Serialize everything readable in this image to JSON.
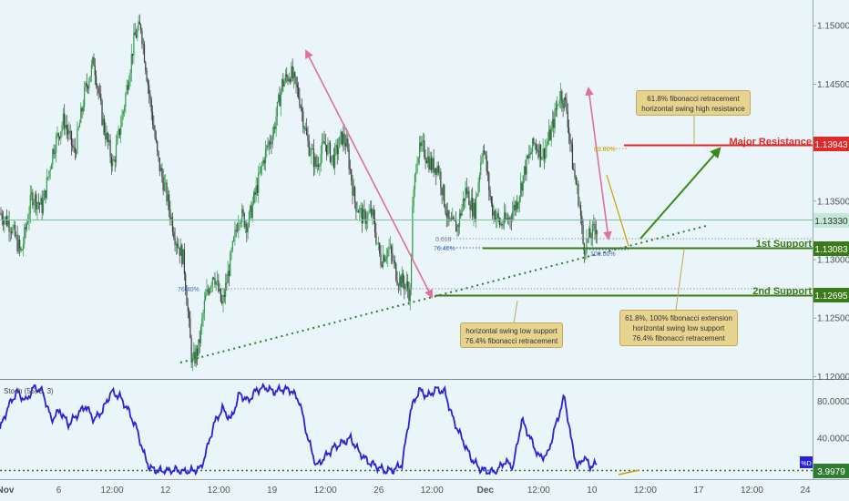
{
  "chart_data": [
    {
      "type": "candlestick",
      "title": "",
      "y_ticks": [
        "1.15000",
        "1.14500",
        "1.14000",
        "1.13500",
        "1.13000",
        "1.12500",
        "1.12000"
      ],
      "y_tick_values": [
        1.15,
        1.145,
        1.14,
        1.135,
        1.13,
        1.125,
        1.12
      ],
      "ylim": [
        1.1198,
        1.1522
      ],
      "x_ticks": [
        "Nov",
        "6",
        "12:00",
        "12",
        "12:00",
        "19",
        "12:00",
        "26",
        "12:00",
        "Dec",
        "12:00",
        "10",
        "12:00",
        "17",
        "12:00",
        "24"
      ],
      "x_tick_bold": [
        "Nov",
        "Dec"
      ],
      "price_path": [
        [
          0,
          1.134
        ],
        [
          5,
          1.133
        ],
        [
          10,
          1.1305
        ],
        [
          15,
          1.1355
        ],
        [
          20,
          1.1345
        ],
        [
          25,
          1.1395
        ],
        [
          30,
          1.142
        ],
        [
          35,
          1.139
        ],
        [
          40,
          1.1445
        ],
        [
          44,
          1.147
        ],
        [
          48,
          1.142
        ],
        [
          53,
          1.138
        ],
        [
          58,
          1.143
        ],
        [
          63,
          1.149
        ],
        [
          66,
          1.15
        ],
        [
          70,
          1.144
        ],
        [
          74,
          1.1385
        ],
        [
          78,
          1.1355
        ],
        [
          82,
          1.132
        ],
        [
          86,
          1.13
        ],
        [
          90,
          1.121
        ],
        [
          93,
          1.1225
        ],
        [
          96,
          1.1265
        ],
        [
          100,
          1.129
        ],
        [
          104,
          1.126
        ],
        [
          108,
          1.13
        ],
        [
          112,
          1.134
        ],
        [
          116,
          1.133
        ],
        [
          120,
          1.136
        ],
        [
          124,
          1.139
        ],
        [
          128,
          1.141
        ],
        [
          132,
          1.145
        ],
        [
          136,
          1.146
        ],
        [
          140,
          1.144
        ],
        [
          144,
          1.14
        ],
        [
          148,
          1.138
        ],
        [
          152,
          1.14
        ],
        [
          156,
          1.1385
        ],
        [
          160,
          1.1405
        ],
        [
          162,
          1.14
        ],
        [
          166,
          1.135
        ],
        [
          170,
          1.1335
        ],
        [
          174,
          1.134
        ],
        [
          178,
          1.13
        ],
        [
          182,
          1.131
        ],
        [
          186,
          1.1285
        ],
        [
          190,
          1.1278
        ],
        [
          192,
          1.127
        ],
        [
          193,
          1.134
        ],
        [
          195,
          1.139
        ],
        [
          198,
          1.1395
        ],
        [
          202,
          1.138
        ],
        [
          205,
          1.138
        ],
        [
          210,
          1.133
        ],
        [
          214,
          1.1328
        ],
        [
          218,
          1.136
        ],
        [
          222,
          1.134
        ],
        [
          226,
          1.14
        ],
        [
          230,
          1.1345
        ],
        [
          234,
          1.133
        ],
        [
          238,
          1.1335
        ],
        [
          242,
          1.135
        ],
        [
          246,
          1.138
        ],
        [
          250,
          1.14
        ],
        [
          254,
          1.139
        ],
        [
          258,
          1.141
        ],
        [
          262,
          1.1443
        ],
        [
          265,
          1.143
        ],
        [
          268,
          1.138
        ],
        [
          271,
          1.135
        ],
        [
          273,
          1.131
        ],
        [
          276,
          1.132
        ],
        [
          279,
          1.1328
        ]
      ],
      "x_range": [
        0,
        380
      ],
      "last_price_label": "1.13330",
      "last_price": 1.1333
    },
    {
      "type": "line",
      "indicator": "Stoch (55, 5, 3)",
      "series": [
        {
          "name": "%D"
        }
      ],
      "y_ticks": [
        "80.0000",
        "40.0000"
      ],
      "y_tick_values": [
        80,
        40
      ],
      "ylim": [
        0,
        100
      ],
      "oversold_level": 3.9979,
      "last_value_label": "3.9979",
      "values_path": [
        [
          0,
          50
        ],
        [
          4,
          75
        ],
        [
          8,
          90
        ],
        [
          12,
          80
        ],
        [
          16,
          95
        ],
        [
          20,
          90
        ],
        [
          24,
          60
        ],
        [
          28,
          70
        ],
        [
          32,
          55
        ],
        [
          36,
          65
        ],
        [
          40,
          75
        ],
        [
          44,
          60
        ],
        [
          48,
          70
        ],
        [
          52,
          90
        ],
        [
          56,
          85
        ],
        [
          60,
          70
        ],
        [
          64,
          50
        ],
        [
          67,
          25
        ],
        [
          70,
          8
        ],
        [
          74,
          5
        ],
        [
          78,
          5
        ],
        [
          82,
          6
        ],
        [
          86,
          4
        ],
        [
          90,
          5
        ],
        [
          94,
          8
        ],
        [
          97,
          30
        ],
        [
          100,
          55
        ],
        [
          104,
          72
        ],
        [
          108,
          60
        ],
        [
          112,
          88
        ],
        [
          116,
          80
        ],
        [
          120,
          92
        ],
        [
          124,
          95
        ],
        [
          128,
          90
        ],
        [
          132,
          93
        ],
        [
          136,
          92
        ],
        [
          140,
          80
        ],
        [
          144,
          40
        ],
        [
          148,
          10
        ],
        [
          152,
          20
        ],
        [
          156,
          30
        ],
        [
          160,
          35
        ],
        [
          164,
          40
        ],
        [
          168,
          25
        ],
        [
          172,
          15
        ],
        [
          176,
          10
        ],
        [
          180,
          5
        ],
        [
          184,
          6
        ],
        [
          188,
          12
        ],
        [
          192,
          70
        ],
        [
          196,
          92
        ],
        [
          200,
          85
        ],
        [
          204,
          93
        ],
        [
          208,
          90
        ],
        [
          212,
          60
        ],
        [
          216,
          40
        ],
        [
          220,
          20
        ],
        [
          224,
          8
        ],
        [
          228,
          4
        ],
        [
          232,
          4
        ],
        [
          236,
          15
        ],
        [
          240,
          10
        ],
        [
          244,
          60
        ],
        [
          248,
          40
        ],
        [
          252,
          20
        ],
        [
          256,
          22
        ],
        [
          260,
          55
        ],
        [
          264,
          85
        ],
        [
          267,
          40
        ],
        [
          270,
          8
        ],
        [
          273,
          20
        ],
        [
          276,
          10
        ],
        [
          279,
          12
        ]
      ],
      "x_range": [
        0,
        380
      ]
    }
  ],
  "colors": {
    "background": "#e9f5f8",
    "candle_up": "#2e9a48",
    "candle_down": "#3a3a3a",
    "resistance": "#e02a2a",
    "support": "#3a7a18",
    "trendline": "#2e7d32",
    "fib_line": "#9aa0a6",
    "arrow_pink": "#e0709a",
    "arrow_green": "#3a8a1a",
    "callout_bg": "#e6d38f",
    "callout_border": "#c3a95a",
    "stoch_line": "#2a22d6"
  },
  "levels": [
    {
      "id": "major",
      "label": "Major Resistance",
      "price": 1.13943,
      "price_label": "1.13943"
    },
    {
      "id": "s1",
      "label": "1st Support",
      "price": 1.13083,
      "price_label": "1.13083"
    },
    {
      "id": "s2",
      "label": "2nd Support",
      "price": 1.12695,
      "price_label": "1.12695"
    }
  ],
  "fib_labels": {
    "f618": "0.618",
    "f764a": "76.40%",
    "f764b": "76.40%",
    "f618b": "61.80%",
    "f100": "100.00%"
  },
  "callouts": {
    "top": [
      "61.8% fibonacci retracement",
      "horizontal swing high resistance"
    ],
    "left": [
      "horizontal swing low support",
      "76.4% fibonacci retracement"
    ],
    "right": [
      "61.8%, 100% fibonacci extension",
      "horizontal swing low support",
      "76.4% fibonacci retracement"
    ]
  },
  "stoch_label": "Stoch (55, 5, 3)",
  "stoch_series_badge": "%D"
}
